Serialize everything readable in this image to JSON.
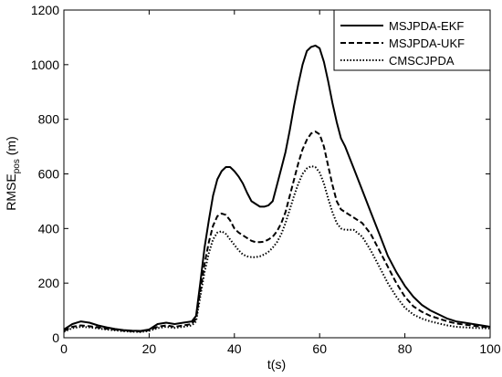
{
  "chart_data": {
    "type": "line",
    "xlabel": "t(s)",
    "ylabel_main": "RMSE",
    "ylabel_sub": "pos",
    "ylabel_unit": " (m)",
    "xlim": [
      0,
      100
    ],
    "ylim": [
      0,
      1200
    ],
    "xticks": [
      0,
      20,
      40,
      60,
      80,
      100
    ],
    "yticks": [
      0,
      200,
      400,
      600,
      800,
      1000,
      1200
    ],
    "grid": false,
    "legend_position": "top-right",
    "series": [
      {
        "name": "MSJPDA-EKF",
        "style": "solid",
        "color": "#000000",
        "x": [
          0,
          2,
          4,
          6,
          8,
          10,
          12,
          14,
          16,
          18,
          20,
          22,
          24,
          26,
          28,
          30,
          31,
          32,
          33,
          34,
          35,
          36,
          37,
          38,
          39,
          40,
          41,
          42,
          43,
          44,
          45,
          46,
          47,
          48,
          49,
          50,
          51,
          52,
          53,
          54,
          55,
          56,
          57,
          58,
          59,
          60,
          61,
          62,
          63,
          64,
          65,
          66,
          68,
          70,
          72,
          74,
          76,
          78,
          80,
          82,
          84,
          86,
          88,
          90,
          92,
          94,
          96,
          98,
          100
        ],
        "y": [
          30,
          50,
          60,
          55,
          45,
          38,
          32,
          28,
          26,
          25,
          30,
          50,
          55,
          50,
          55,
          60,
          80,
          200,
          330,
          430,
          520,
          580,
          610,
          625,
          625,
          610,
          590,
          565,
          530,
          500,
          490,
          480,
          480,
          485,
          500,
          560,
          620,
          680,
          760,
          850,
          930,
          1000,
          1050,
          1065,
          1070,
          1060,
          1010,
          940,
          860,
          790,
          730,
          700,
          620,
          540,
          460,
          380,
          300,
          240,
          190,
          150,
          120,
          100,
          85,
          70,
          60,
          55,
          50,
          45,
          40
        ]
      },
      {
        "name": "MSJPDA-UKF",
        "style": "dashed",
        "color": "#000000",
        "x": [
          0,
          2,
          4,
          6,
          8,
          10,
          12,
          14,
          16,
          18,
          20,
          22,
          24,
          26,
          28,
          30,
          31,
          32,
          33,
          34,
          35,
          36,
          37,
          38,
          39,
          40,
          41,
          42,
          43,
          44,
          45,
          46,
          47,
          48,
          49,
          50,
          51,
          52,
          53,
          54,
          55,
          56,
          57,
          58,
          59,
          60,
          61,
          62,
          63,
          64,
          65,
          66,
          68,
          70,
          72,
          74,
          76,
          78,
          80,
          82,
          84,
          86,
          88,
          90,
          92,
          94,
          96,
          98,
          100
        ],
        "y": [
          25,
          40,
          45,
          42,
          38,
          33,
          30,
          26,
          24,
          23,
          28,
          40,
          45,
          40,
          45,
          50,
          70,
          170,
          270,
          350,
          410,
          445,
          455,
          450,
          430,
          400,
          385,
          375,
          365,
          355,
          350,
          350,
          352,
          360,
          370,
          390,
          420,
          460,
          520,
          580,
          640,
          690,
          725,
          748,
          755,
          745,
          700,
          630,
          560,
          500,
          470,
          460,
          440,
          420,
          380,
          320,
          260,
          200,
          150,
          115,
          95,
          80,
          70,
          60,
          52,
          48,
          44,
          40,
          38
        ]
      },
      {
        "name": "CMSCJPDA",
        "style": "dotted",
        "color": "#000000",
        "x": [
          0,
          2,
          4,
          6,
          8,
          10,
          12,
          14,
          16,
          18,
          20,
          22,
          24,
          26,
          28,
          30,
          31,
          32,
          33,
          34,
          35,
          36,
          37,
          38,
          39,
          40,
          41,
          42,
          43,
          44,
          45,
          46,
          47,
          48,
          49,
          50,
          51,
          52,
          53,
          54,
          55,
          56,
          57,
          58,
          59,
          60,
          61,
          62,
          63,
          64,
          65,
          66,
          68,
          70,
          72,
          74,
          76,
          78,
          80,
          82,
          84,
          86,
          88,
          90,
          92,
          94,
          96,
          98,
          100
        ],
        "y": [
          22,
          35,
          40,
          38,
          34,
          30,
          27,
          24,
          22,
          21,
          25,
          35,
          40,
          36,
          40,
          45,
          60,
          150,
          240,
          310,
          360,
          385,
          390,
          380,
          360,
          340,
          320,
          305,
          298,
          295,
          295,
          298,
          305,
          315,
          330,
          350,
          380,
          420,
          470,
          520,
          565,
          600,
          620,
          628,
          625,
          605,
          565,
          510,
          460,
          420,
          400,
          395,
          395,
          370,
          320,
          260,
          200,
          150,
          110,
          85,
          70,
          60,
          52,
          45,
          40,
          38,
          36,
          35,
          34
        ]
      }
    ]
  }
}
